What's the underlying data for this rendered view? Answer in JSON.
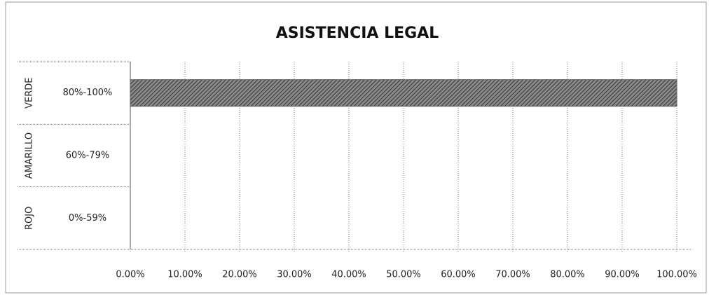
{
  "chart_data": {
    "type": "bar",
    "orientation": "horizontal",
    "title": "ASISTENCIA LEGAL",
    "groups": [
      "VERDE",
      "AMARILLO",
      "ROJO"
    ],
    "categories": [
      "80%-100%",
      "60%-79%",
      "0%-59%"
    ],
    "values": [
      100,
      0,
      0
    ],
    "color": "#5a5a5a",
    "xlim": [
      0,
      100
    ],
    "xticks": [
      {
        "value": 0,
        "label": "0.00%"
      },
      {
        "value": 10,
        "label": "10.00%"
      },
      {
        "value": 20,
        "label": "20.00%"
      },
      {
        "value": 30,
        "label": "30.00%"
      },
      {
        "value": 40,
        "label": "40.00%"
      },
      {
        "value": 50,
        "label": "50.00%"
      },
      {
        "value": 60,
        "label": "60.00%"
      },
      {
        "value": 70,
        "label": "70.00%"
      },
      {
        "value": 80,
        "label": "80.00%"
      },
      {
        "value": 90,
        "label": "90.00%"
      },
      {
        "value": 100,
        "label": "100.00%"
      }
    ],
    "grid": true
  }
}
